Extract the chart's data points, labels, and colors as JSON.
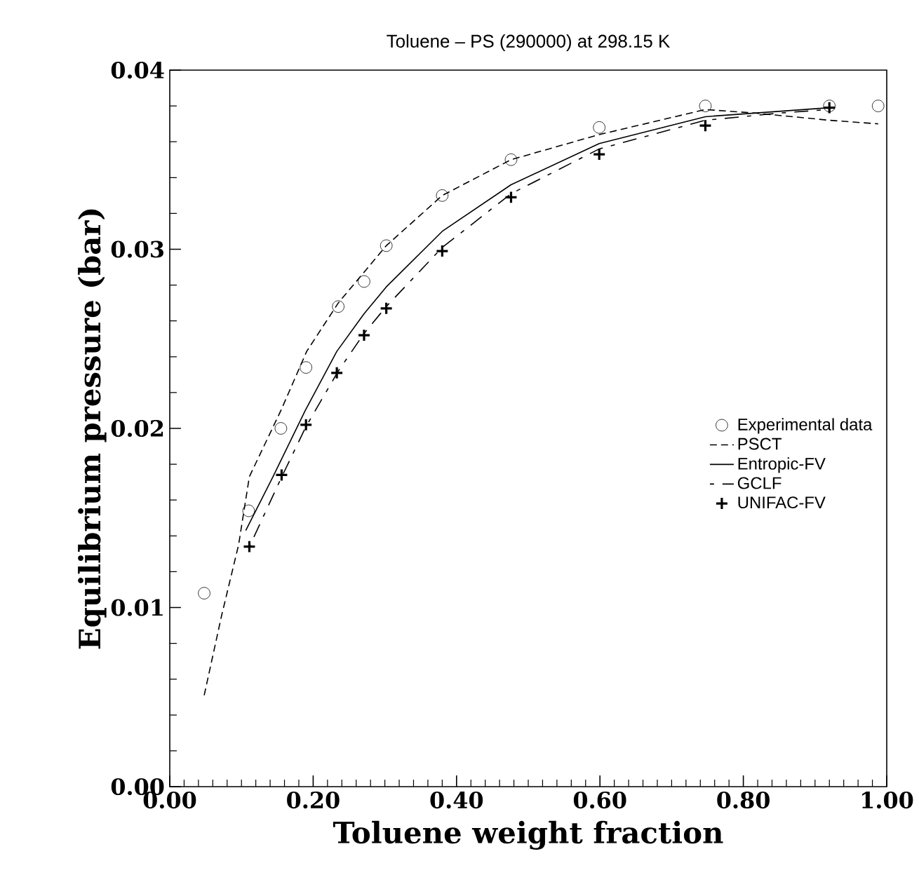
{
  "chart_data": {
    "type": "line",
    "title": "Toluene – PS (290000) at 298.15 K",
    "xlabel": "Toluene weight fraction",
    "ylabel": "Equilibrium pressure (bar)",
    "xlim": [
      0.0,
      1.0
    ],
    "ylim": [
      0.0,
      0.04
    ],
    "xticks": [
      {
        "value": 0.0,
        "label": "0.00"
      },
      {
        "value": 0.2,
        "label": "0.20"
      },
      {
        "value": 0.4,
        "label": "0.40"
      },
      {
        "value": 0.6,
        "label": "0.60"
      },
      {
        "value": 0.8,
        "label": "0.80"
      },
      {
        "value": 1.0,
        "label": "1.00"
      }
    ],
    "yticks": [
      {
        "value": 0.0,
        "label": "0.00"
      },
      {
        "value": 0.01,
        "label": "0.01"
      },
      {
        "value": 0.02,
        "label": "0.02"
      },
      {
        "value": 0.03,
        "label": "0.03"
      },
      {
        "value": 0.04,
        "label": "0.04"
      }
    ],
    "legend": "right",
    "grid": false,
    "series": [
      {
        "name": "Experimental data",
        "type": "scatter",
        "marker": "circle",
        "color": "#000000",
        "x": [
          0.048,
          0.11,
          0.155,
          0.19,
          0.235,
          0.271,
          0.302,
          0.38,
          0.476,
          0.599,
          0.747,
          0.92,
          0.988
        ],
        "values": [
          0.0108,
          0.0154,
          0.02,
          0.0234,
          0.0268,
          0.0282,
          0.0302,
          0.033,
          0.035,
          0.0368,
          0.038,
          0.038,
          0.038
        ]
      },
      {
        "name": "PSCT",
        "type": "line",
        "line_style": "dashed",
        "color": "#000000",
        "x": [
          0.048,
          0.072,
          0.096,
          0.111,
          0.155,
          0.191,
          0.235,
          0.302,
          0.38,
          0.476,
          0.599,
          0.747,
          0.817,
          0.92,
          0.988
        ],
        "values": [
          0.0051,
          0.0095,
          0.0135,
          0.0173,
          0.021,
          0.0243,
          0.027,
          0.0302,
          0.033,
          0.035,
          0.0364,
          0.0378,
          0.0376,
          0.0372,
          0.037
        ]
      },
      {
        "name": "Entropic-FV",
        "type": "line",
        "line_style": "solid",
        "color": "#000000",
        "x": [
          0.106,
          0.144,
          0.189,
          0.233,
          0.271,
          0.302,
          0.38,
          0.476,
          0.599,
          0.747,
          0.92
        ],
        "values": [
          0.0143,
          0.0173,
          0.021,
          0.0243,
          0.0264,
          0.0279,
          0.031,
          0.0336,
          0.0359,
          0.0374,
          0.0379
        ]
      },
      {
        "name": "GCLF",
        "type": "line",
        "line_style": "longdashed",
        "color": "#000000",
        "x": [
          0.11,
          0.155,
          0.19,
          0.235,
          0.271,
          0.302,
          0.38,
          0.476,
          0.599,
          0.747,
          0.85,
          0.92
        ],
        "values": [
          0.0133,
          0.0172,
          0.0201,
          0.0232,
          0.0253,
          0.0268,
          0.0301,
          0.0331,
          0.0356,
          0.0372,
          0.0376,
          0.0378
        ]
      },
      {
        "name": "UNIFAC-FV",
        "type": "scatter",
        "marker": "cross",
        "color": "#000000",
        "x": [
          0.111,
          0.156,
          0.19,
          0.233,
          0.271,
          0.302,
          0.38,
          0.476,
          0.599,
          0.747,
          0.92
        ],
        "values": [
          0.0134,
          0.0174,
          0.0202,
          0.0231,
          0.0252,
          0.0267,
          0.0299,
          0.0329,
          0.0353,
          0.0369,
          0.0379
        ]
      }
    ]
  }
}
